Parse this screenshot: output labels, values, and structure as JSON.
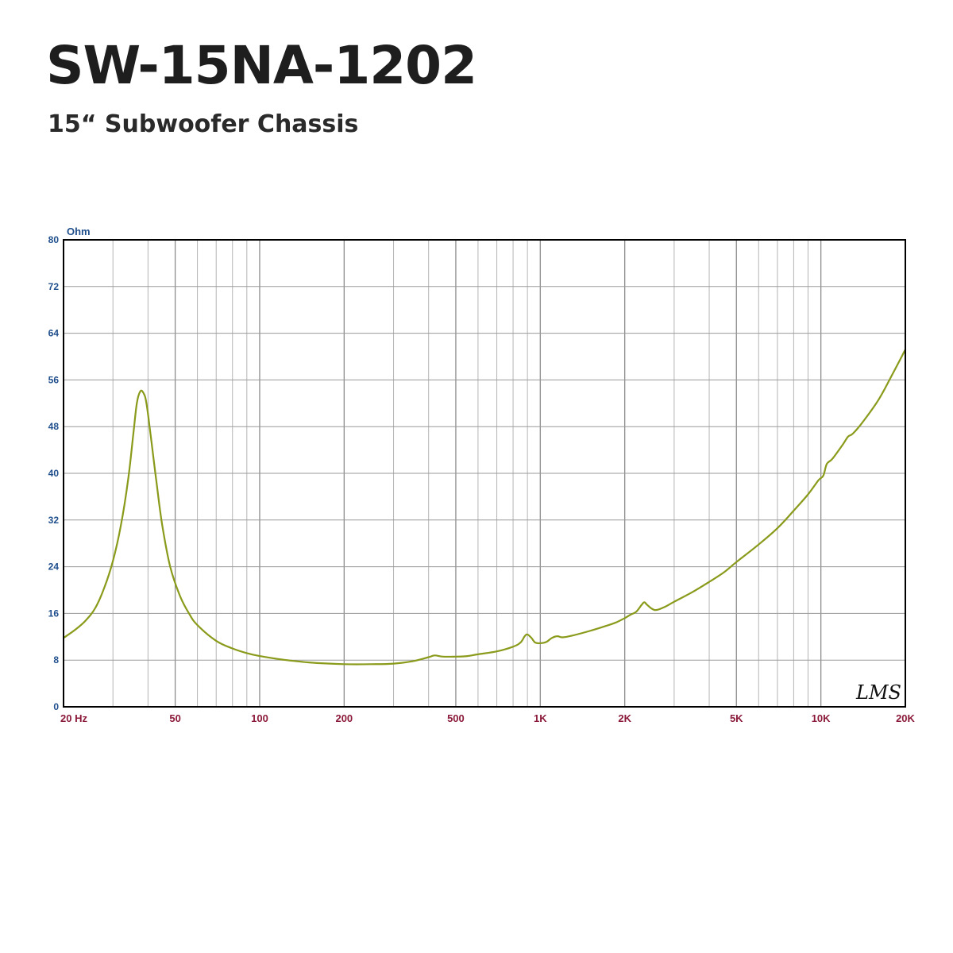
{
  "header": {
    "title": "SW-15NA-1202",
    "subtitle": "15“ Subwoofer Chassis"
  },
  "chart_data": {
    "type": "line",
    "ylabel": "Ohm",
    "x_scale": "log",
    "xlim": [
      20,
      20000
    ],
    "ylim": [
      0,
      80
    ],
    "grid": true,
    "x_ticks": [
      {
        "value": 20,
        "label": "20  Hz"
      },
      {
        "value": 50,
        "label": "50"
      },
      {
        "value": 100,
        "label": "100"
      },
      {
        "value": 200,
        "label": "200"
      },
      {
        "value": 500,
        "label": "500"
      },
      {
        "value": 1000,
        "label": "1K"
      },
      {
        "value": 2000,
        "label": "2K"
      },
      {
        "value": 5000,
        "label": "5K"
      },
      {
        "value": 10000,
        "label": "10K"
      },
      {
        "value": 20000,
        "label": "20K"
      }
    ],
    "y_ticks": [
      {
        "value": 0,
        "label": "0"
      },
      {
        "value": 8,
        "label": "8"
      },
      {
        "value": 16,
        "label": "16"
      },
      {
        "value": 24,
        "label": "24"
      },
      {
        "value": 32,
        "label": "32"
      },
      {
        "value": 40,
        "label": "40"
      },
      {
        "value": 48,
        "label": "48"
      },
      {
        "value": 56,
        "label": "56"
      },
      {
        "value": 64,
        "label": "64"
      },
      {
        "value": 72,
        "label": "72"
      },
      {
        "value": 80,
        "label": "80"
      }
    ],
    "series": [
      {
        "color": "#8a9a1a",
        "points": [
          [
            20,
            11.8
          ],
          [
            22,
            13.2
          ],
          [
            24,
            14.8
          ],
          [
            26,
            17.0
          ],
          [
            28,
            20.5
          ],
          [
            30,
            25.0
          ],
          [
            32,
            31.0
          ],
          [
            34,
            39.0
          ],
          [
            35.5,
            47.0
          ],
          [
            36.5,
            52.0
          ],
          [
            37.5,
            54.0
          ],
          [
            38.5,
            53.8
          ],
          [
            39.5,
            52.0
          ],
          [
            41,
            46.0
          ],
          [
            43,
            38.0
          ],
          [
            45,
            31.0
          ],
          [
            48,
            24.0
          ],
          [
            52,
            19.0
          ],
          [
            56,
            16.0
          ],
          [
            60,
            14.0
          ],
          [
            70,
            11.3
          ],
          [
            80,
            10.0
          ],
          [
            90,
            9.2
          ],
          [
            100,
            8.7
          ],
          [
            120,
            8.1
          ],
          [
            150,
            7.6
          ],
          [
            200,
            7.3
          ],
          [
            250,
            7.3
          ],
          [
            300,
            7.4
          ],
          [
            350,
            7.8
          ],
          [
            400,
            8.5
          ],
          [
            420,
            8.8
          ],
          [
            450,
            8.6
          ],
          [
            500,
            8.6
          ],
          [
            550,
            8.7
          ],
          [
            600,
            9.0
          ],
          [
            700,
            9.5
          ],
          [
            800,
            10.3
          ],
          [
            850,
            11.0
          ],
          [
            880,
            12.1
          ],
          [
            900,
            12.4
          ],
          [
            930,
            11.8
          ],
          [
            960,
            11.0
          ],
          [
            1000,
            10.9
          ],
          [
            1050,
            11.1
          ],
          [
            1100,
            11.8
          ],
          [
            1150,
            12.1
          ],
          [
            1200,
            11.9
          ],
          [
            1300,
            12.2
          ],
          [
            1500,
            13.0
          ],
          [
            1700,
            13.8
          ],
          [
            1850,
            14.4
          ],
          [
            2000,
            15.2
          ],
          [
            2100,
            15.8
          ],
          [
            2200,
            16.3
          ],
          [
            2300,
            17.5
          ],
          [
            2350,
            17.9
          ],
          [
            2400,
            17.5
          ],
          [
            2500,
            16.8
          ],
          [
            2600,
            16.6
          ],
          [
            2800,
            17.2
          ],
          [
            3000,
            18.0
          ],
          [
            3500,
            19.7
          ],
          [
            4000,
            21.4
          ],
          [
            4500,
            23.0
          ],
          [
            5000,
            24.8
          ],
          [
            6000,
            27.8
          ],
          [
            7000,
            30.6
          ],
          [
            8000,
            33.6
          ],
          [
            9000,
            36.4
          ],
          [
            9800,
            38.8
          ],
          [
            10200,
            39.6
          ],
          [
            10500,
            41.6
          ],
          [
            11000,
            42.5
          ],
          [
            12000,
            45.0
          ],
          [
            12500,
            46.3
          ],
          [
            13000,
            46.8
          ],
          [
            14000,
            48.6
          ],
          [
            16000,
            52.5
          ],
          [
            18000,
            57.0
          ],
          [
            20000,
            61.2
          ]
        ]
      }
    ],
    "watermark": "LMS"
  }
}
